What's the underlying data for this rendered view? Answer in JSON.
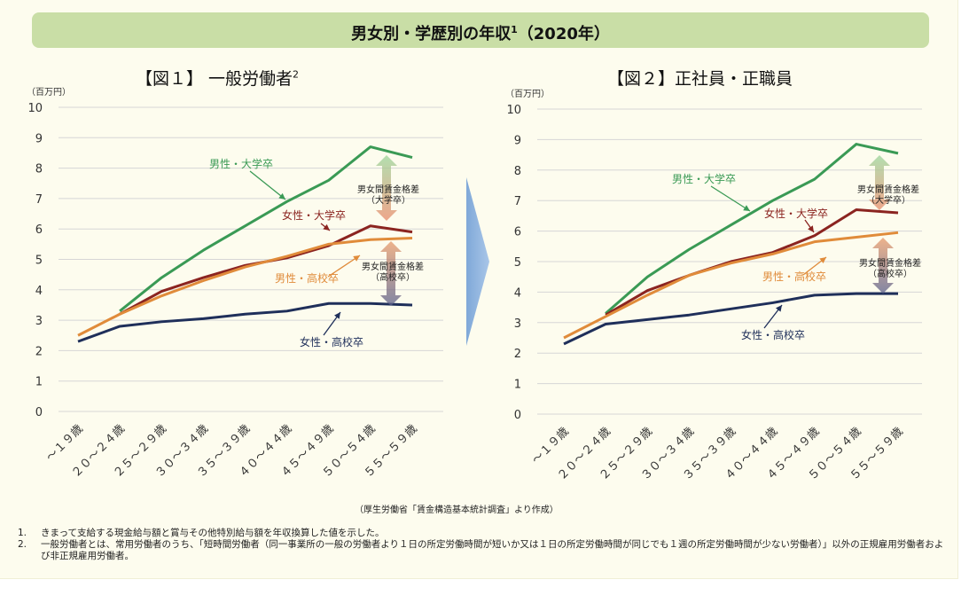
{
  "banner": {
    "title": "男女別・学歴別の年収",
    "sup": "1",
    "year": "（2020年）"
  },
  "charts": [
    {
      "title": "【図１】 一般労働者",
      "sup": "2"
    },
    {
      "title": "【図２】正社員・正職員",
      "sup": ""
    }
  ],
  "series_labels": {
    "male_univ": "男性・大学卒",
    "female_univ": "女性・大学卒",
    "male_hs": "男性・高校卒",
    "female_hs": "女性・高校卒"
  },
  "gap_labels": {
    "univ": [
      "男女間賃金格差",
      "（大学卒）"
    ],
    "hs": [
      "男女間賃金格差",
      "（高校卒）"
    ]
  },
  "colors": {
    "male_univ": "#3a9a55",
    "female_univ": "#8b2420",
    "male_hs": "#e08b3a",
    "female_hs": "#1f2f5a",
    "arrow": "#5b8fd0"
  },
  "chart_data": [
    {
      "type": "line",
      "title": "【図１】 一般労働者",
      "unit": "（百万円）",
      "ylim": [
        0,
        10
      ],
      "yticks": [
        "0",
        "1",
        "2",
        "3",
        "4",
        "5",
        "6",
        "7",
        "8",
        "9",
        "10"
      ],
      "categories": [
        "～１９歳",
        "２０～２４歳",
        "２５～２９歳",
        "３０～３４歳",
        "３５～３９歳",
        "４０～４４歳",
        "４５～４９歳",
        "５０～５４歳",
        "５５～５９歳"
      ],
      "series": [
        {
          "name": "男性・大学卒",
          "key": "male_univ",
          "values": [
            null,
            3.3,
            4.4,
            5.3,
            6.1,
            6.9,
            7.6,
            8.7,
            8.35
          ]
        },
        {
          "name": "女性・大学卒",
          "key": "female_univ",
          "values": [
            null,
            3.2,
            3.95,
            4.4,
            4.8,
            5.05,
            5.45,
            6.1,
            5.9
          ]
        },
        {
          "name": "男性・高校卒",
          "key": "male_hs",
          "values": [
            2.5,
            3.2,
            3.8,
            4.3,
            4.75,
            5.1,
            5.5,
            5.65,
            5.7
          ]
        },
        {
          "name": "女性・高校卒",
          "key": "female_hs",
          "values": [
            2.3,
            2.8,
            2.95,
            3.05,
            3.2,
            3.3,
            3.55,
            3.55,
            3.5
          ]
        }
      ],
      "grid": true
    },
    {
      "type": "line",
      "title": "【図２】正社員・正職員",
      "unit": "（百万円）",
      "ylim": [
        0,
        10
      ],
      "yticks": [
        "0",
        "1",
        "2",
        "3",
        "4",
        "5",
        "6",
        "7",
        "8",
        "9",
        "10"
      ],
      "categories": [
        "～１９歳",
        "２０～２４歳",
        "２５～２９歳",
        "３０～３４歳",
        "３５～３９歳",
        "４０～４４歳",
        "４５～４９歳",
        "５０～５４歳",
        "５５～５９歳"
      ],
      "series": [
        {
          "name": "男性・大学卒",
          "key": "male_univ",
          "values": [
            null,
            3.3,
            4.5,
            5.4,
            6.2,
            7.0,
            7.7,
            8.85,
            8.55
          ]
        },
        {
          "name": "女性・大学卒",
          "key": "female_univ",
          "values": [
            null,
            3.25,
            4.05,
            4.55,
            5.0,
            5.3,
            5.85,
            6.7,
            6.6
          ]
        },
        {
          "name": "男性・高校卒",
          "key": "male_hs",
          "values": [
            2.5,
            3.2,
            3.9,
            4.55,
            4.95,
            5.25,
            5.65,
            5.8,
            5.95
          ]
        },
        {
          "name": "女性・高校卒",
          "key": "female_hs",
          "values": [
            2.3,
            2.95,
            3.1,
            3.25,
            3.45,
            3.65,
            3.9,
            3.95,
            3.95
          ]
        }
      ],
      "grid": true
    }
  ],
  "source": "（厚生労働省「賃金構造基本統計調査」より作成）",
  "notes": [
    {
      "num": "1.",
      "text": "きまって支給する現金給与額と賞与その他特別給与額を年収換算した値を示した。"
    },
    {
      "num": "2.",
      "text": "一般労働者とは、常用労働者のうち、「短時間労働者（同一事業所の一般の労働者より１日の所定労働時間が短いか又は１日の所定労働時間が同じでも１週の所定労働時間が少ない労働者）」以外の正規雇用労働者および非正規雇用労働者。"
    }
  ]
}
